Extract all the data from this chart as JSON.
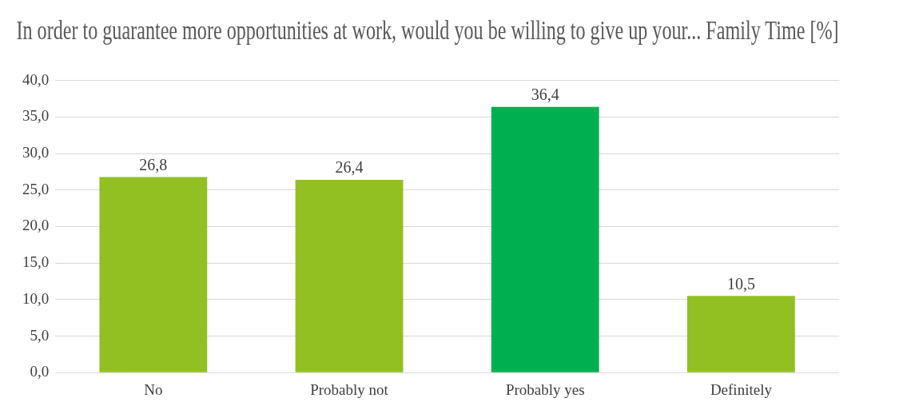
{
  "chart_data": {
    "type": "bar",
    "title": "In order to guarantee more opportunities at work, would you be willing to give up your... Family Time [%]",
    "categories": [
      "No",
      "Probably not",
      "Probably yes",
      "Definitely"
    ],
    "values": [
      26.8,
      26.4,
      36.4,
      10.5
    ],
    "colors": [
      "#92c023",
      "#92c023",
      "#00b050",
      "#92c023"
    ],
    "value_labels": [
      "26,8",
      "26,4",
      "36,4",
      "10,5"
    ],
    "ylim": [
      0,
      40
    ],
    "yticks": [
      {
        "value": 0,
        "label": "0,0"
      },
      {
        "value": 5,
        "label": "5,0"
      },
      {
        "value": 10,
        "label": "10,0"
      },
      {
        "value": 15,
        "label": "15,0"
      },
      {
        "value": 20,
        "label": "20,0"
      },
      {
        "value": 25,
        "label": "25,0"
      },
      {
        "value": 30,
        "label": "30,0"
      },
      {
        "value": 35,
        "label": "35,0"
      },
      {
        "value": 40,
        "label": "40,0"
      }
    ],
    "grid": "y",
    "legend": false
  }
}
